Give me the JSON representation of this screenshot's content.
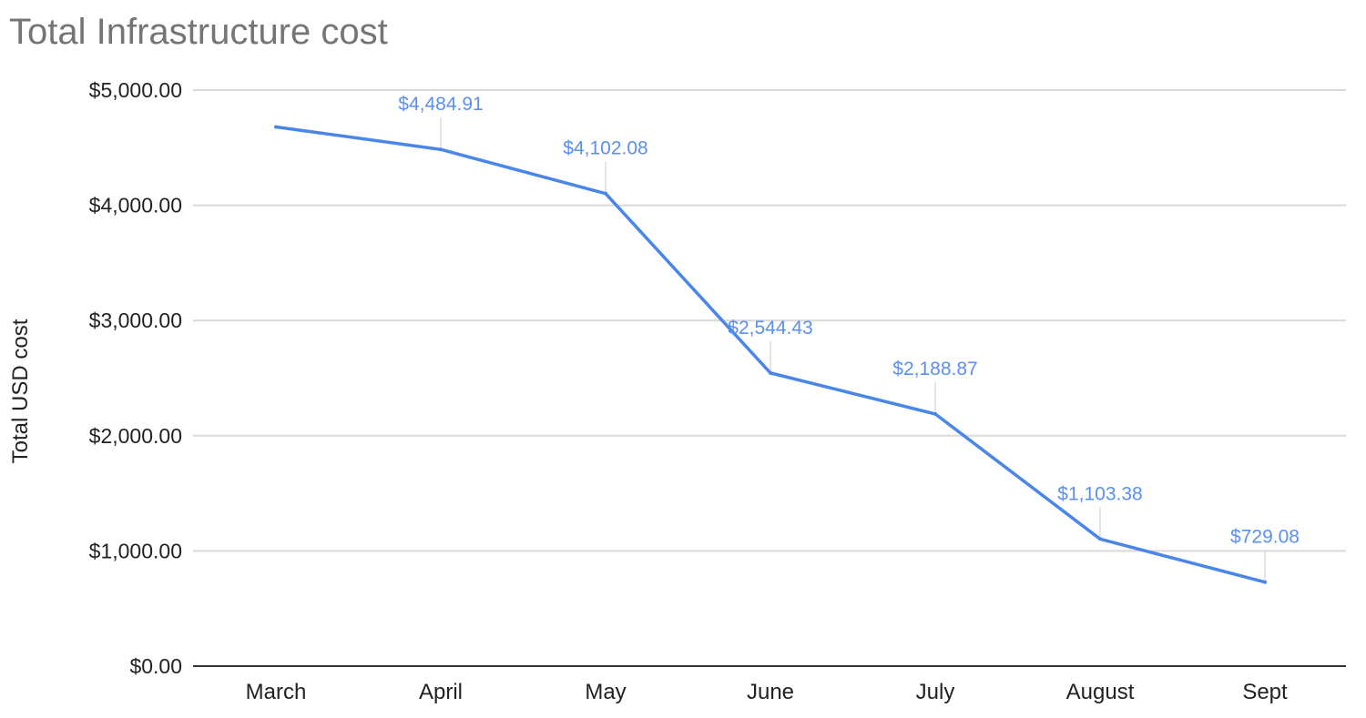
{
  "colors": {
    "series": "#4a86e8",
    "label": "#5b8ff0",
    "title": "#757575",
    "grid": "#d9d9d9",
    "axis": "#333333",
    "text": "#222222"
  },
  "chart_data": {
    "type": "line",
    "title": "Total Infrastructure cost",
    "xlabel": "",
    "ylabel": "Total USD cost",
    "categories": [
      "March",
      "April",
      "May",
      "June",
      "July",
      "August",
      "Sept"
    ],
    "series": [
      {
        "values": [
          4680,
          4484.91,
          4102.08,
          2544.43,
          2188.87,
          1103.38,
          729.08
        ]
      }
    ],
    "data_labels": [
      "",
      "$4,484.91",
      "$4,102.08",
      "$2,544.43",
      "$2,188.87",
      "$1,103.38",
      "$729.08"
    ],
    "ylim": [
      0,
      5000
    ],
    "yticks": [
      0,
      1000,
      2000,
      3000,
      4000,
      5000
    ],
    "ytick_labels": [
      "$0.00",
      "$1,000.00",
      "$2,000.00",
      "$3,000.00",
      "$4,000.00",
      "$5,000.00"
    ],
    "grid": true,
    "legend": "none"
  }
}
